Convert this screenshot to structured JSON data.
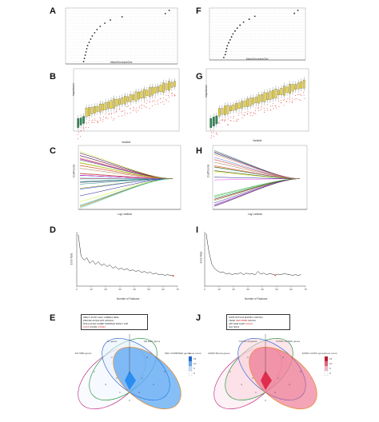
{
  "figure": {
    "panels": [
      {
        "letter": "A",
        "xlabel": "MeanDecreaseGini"
      },
      {
        "letter": "B",
        "xlabel": "Variable",
        "ylabel": "Importance"
      },
      {
        "letter": "C",
        "xlabel": "Log Lambda",
        "ylabel": "Coefficients"
      },
      {
        "letter": "D",
        "xlabel": "Number of Features",
        "ylabel": "Error Rate",
        "xticks": [
          "0",
          "10",
          "20",
          "30",
          "40",
          "50",
          "60",
          "70"
        ]
      },
      {
        "letter": "E",
        "legend_title": "Gene count",
        "sets": [
          "AR GBM genes",
          "AT genes",
          "AR DEG genes",
          "SRC COMBINED genes"
        ]
      },
      {
        "letter": "F",
        "xlabel": "MeanDecreaseGini"
      },
      {
        "letter": "G",
        "xlabel": "Variable",
        "ylabel": "Importance"
      },
      {
        "letter": "H",
        "xlabel": "Log Lambda",
        "ylabel": "Coefficients"
      },
      {
        "letter": "I",
        "xlabel": "Number of Features",
        "ylabel": "Error Rate",
        "xticks": [
          "0",
          "10",
          "20",
          "30",
          "40",
          "50",
          "60",
          "70"
        ]
      },
      {
        "letter": "J",
        "legend_title": "Gene count",
        "sets": [
          "ESRD Boruta genes",
          "COVID-19 genes",
          "COVID-19 DEG genes",
          "ESRD LASSO genes"
        ]
      }
    ],
    "legend_values_e": [
      "15",
      "10",
      "5",
      "0"
    ],
    "legend_values_j": [
      "15",
      "10",
      "5",
      "0"
    ],
    "gene_box_e": {
      "lines": [
        "ZBAC7  FLPP  LGHC  LMBR13  SESL",
        "FBXO32  ACSS2  AP1 APOLD1",
        "MT1G  ALDH  C1QBP  TMPRSS2  RGS17  GJP",
        "CCL5  CXCR1  CXCR4 "
      ],
      "red_words": [
        "CCL5",
        "CXCR4"
      ]
    },
    "gene_box_j": {
      "lines": [
        "GIPR  NOTCH2  MAP3K1  TANTAN",
        "TIRAP  IRF5  PRBP  SOCS3",
        "ATP  ADM  GJAP  CXCL6",
        "SLC SCL3"
      ],
      "red_words": [
        "IRF5",
        "PRBP",
        "CXCL6"
      ]
    },
    "colors": {
      "gbm_blue": "#2288ee",
      "covid_red": "#dd2244",
      "bar_yellow": "#e8d24a",
      "shadow_green": "#2e8b57",
      "scatter_red": "#e64444"
    }
  },
  "chart_data": [
    {
      "type": "scatter",
      "panel": "A",
      "xlabel": "MeanDecreaseGini",
      "values": [
        2.1,
        2.2,
        2.3,
        2.4,
        2.5,
        2.6,
        2.8,
        3.0,
        3.2,
        3.5,
        3.8,
        4.2,
        4.8,
        5.5,
        7.0,
        12.5,
        13.0
      ]
    },
    {
      "type": "scatter",
      "panel": "F",
      "xlabel": "MeanDecreaseGini",
      "values": [
        1.8,
        2.0,
        2.1,
        2.2,
        2.3,
        2.5,
        2.7,
        2.9,
        3.1,
        3.4,
        3.7,
        4.1,
        4.6,
        5.4,
        6.2,
        11.8,
        12.3
      ]
    },
    {
      "type": "line",
      "panel": "D",
      "xlabel": "Number of Features",
      "ylabel": "Error Rate",
      "x": [
        1,
        3,
        5,
        7,
        9,
        11,
        13,
        15,
        17,
        19,
        21,
        23,
        25,
        27,
        29,
        31,
        33,
        35,
        37,
        39,
        41,
        43,
        45,
        47,
        49,
        51,
        53,
        55,
        57,
        59,
        61,
        63,
        65,
        67
      ],
      "y": [
        0.95,
        0.55,
        0.48,
        0.52,
        0.42,
        0.47,
        0.4,
        0.45,
        0.38,
        0.41,
        0.36,
        0.39,
        0.33,
        0.36,
        0.31,
        0.33,
        0.3,
        0.32,
        0.28,
        0.3,
        0.27,
        0.29,
        0.25,
        0.27,
        0.24,
        0.26,
        0.22,
        0.24,
        0.21,
        0.22,
        0.2,
        0.21,
        0.2,
        0.19
      ]
    },
    {
      "type": "line",
      "panel": "I",
      "xlabel": "Number of Features",
      "ylabel": "Error Rate",
      "x": [
        1,
        3,
        5,
        7,
        9,
        11,
        13,
        15,
        17,
        19,
        21,
        23,
        25,
        27,
        29,
        31,
        33,
        35,
        37,
        39,
        41,
        43,
        45,
        47,
        49,
        51,
        53,
        55,
        57,
        59,
        61,
        63,
        65,
        67
      ],
      "y": [
        0.97,
        0.62,
        0.4,
        0.32,
        0.28,
        0.25,
        0.26,
        0.22,
        0.24,
        0.21,
        0.23,
        0.22,
        0.25,
        0.21,
        0.24,
        0.22,
        0.23,
        0.21,
        0.27,
        0.22,
        0.24,
        0.21,
        0.23,
        0.22,
        0.2,
        0.22,
        0.21,
        0.23,
        0.22,
        0.21,
        0.2,
        0.21,
        0.2,
        0.21
      ]
    }
  ]
}
